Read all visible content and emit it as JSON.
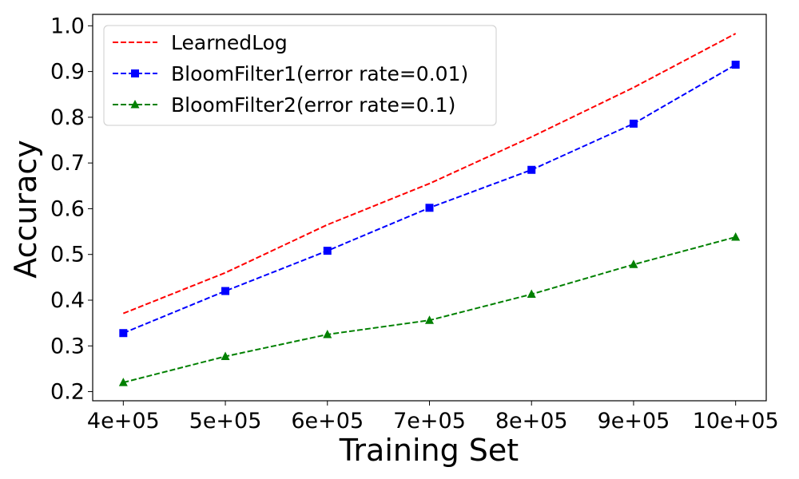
{
  "chart_data": {
    "type": "line",
    "title": "",
    "xlabel": "Training Set",
    "ylabel": "Accuracy",
    "x": [
      400000,
      500000,
      600000,
      700000,
      800000,
      900000,
      1000000
    ],
    "x_tick_labels": [
      "4e+05",
      "5e+05",
      "6e+05",
      "7e+05",
      "8e+05",
      "9e+05",
      "10e+05"
    ],
    "y_ticks": [
      0.2,
      0.3,
      0.4,
      0.5,
      0.6,
      0.7,
      0.8,
      0.9,
      1.0
    ],
    "y_tick_labels": [
      "0.2",
      "0.3",
      "0.4",
      "0.5",
      "0.6",
      "0.7",
      "0.8",
      "0.9",
      "1.0"
    ],
    "xlim": [
      370000,
      1030000
    ],
    "ylim": [
      0.18,
      1.025
    ],
    "grid": false,
    "legend_position": "top-left",
    "series": [
      {
        "name": "LearnedLog",
        "color": "#ff0000",
        "marker": "none",
        "line_style": "dashed",
        "values": [
          0.371,
          0.46,
          0.565,
          0.655,
          0.757,
          0.865,
          0.983
        ]
      },
      {
        "name": "BloomFilter1(error rate=0.01)",
        "color": "#0000ff",
        "marker": "square",
        "line_style": "dashed",
        "values": [
          0.328,
          0.42,
          0.508,
          0.602,
          0.685,
          0.786,
          0.915
        ]
      },
      {
        "name": "BloomFilter2(error rate=0.1)",
        "color": "#008000",
        "marker": "triangle",
        "line_style": "dashed",
        "values": [
          0.22,
          0.277,
          0.325,
          0.356,
          0.413,
          0.478,
          0.538
        ]
      }
    ]
  }
}
